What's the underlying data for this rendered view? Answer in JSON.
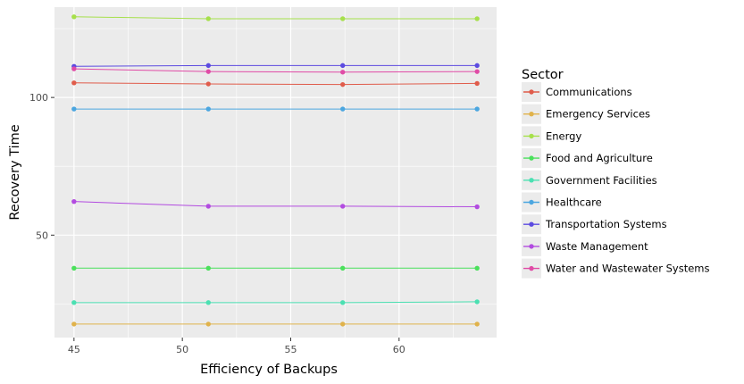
{
  "chart_data": {
    "type": "line",
    "title": "",
    "xlabel": "Efficiency of Backups",
    "ylabel": "Recovery Time",
    "x": [
      45.0,
      51.2,
      57.4,
      63.6
    ],
    "xlim": [
      44.1,
      64.5
    ],
    "ylim": [
      12.8,
      132.8
    ],
    "x_ticks": [
      45,
      50,
      55,
      60
    ],
    "y_ticks": [
      50,
      100
    ],
    "x_minor_ticks": [
      47.5,
      52.5,
      57.5,
      62.5
    ],
    "y_minor_ticks": [
      25,
      75,
      125
    ],
    "grid": true,
    "legend_title": "Sector",
    "legend_position": "right",
    "series": [
      {
        "name": "Communications",
        "color": "#e05c4b",
        "values": [
          105.3,
          104.9,
          104.7,
          105.1
        ]
      },
      {
        "name": "Emergency Services",
        "color": "#e0b24b",
        "values": [
          17.7,
          17.7,
          17.7,
          17.7
        ]
      },
      {
        "name": "Energy",
        "color": "#a6e04b",
        "values": [
          129.3,
          128.6,
          128.6,
          128.6
        ]
      },
      {
        "name": "Food and Agriculture",
        "color": "#4be05c",
        "values": [
          38.0,
          38.0,
          38.0,
          38.0
        ]
      },
      {
        "name": "Government Facilities",
        "color": "#4be0b2",
        "values": [
          25.5,
          25.5,
          25.5,
          25.8
        ]
      },
      {
        "name": "Healthcare",
        "color": "#4ba6e0",
        "values": [
          95.8,
          95.8,
          95.8,
          95.8
        ]
      },
      {
        "name": "Transportation Systems",
        "color": "#5c4be0",
        "values": [
          111.3,
          111.6,
          111.6,
          111.6
        ]
      },
      {
        "name": "Waste Management",
        "color": "#b24be0",
        "values": [
          62.2,
          60.5,
          60.5,
          60.3
        ]
      },
      {
        "name": "Water and Wastewater Systems",
        "color": "#e04ba6",
        "values": [
          110.4,
          109.4,
          109.2,
          109.4
        ]
      }
    ]
  }
}
